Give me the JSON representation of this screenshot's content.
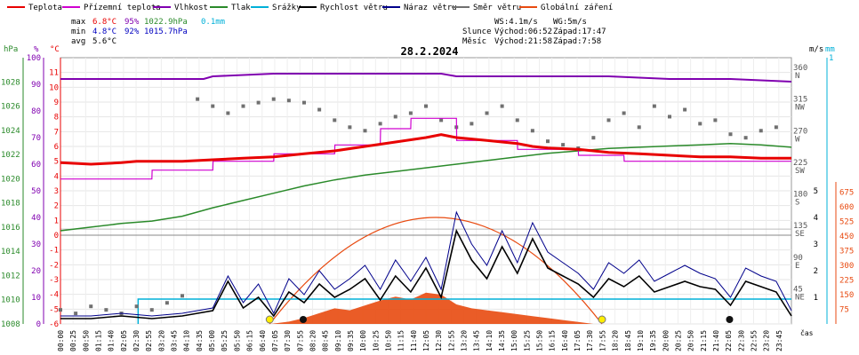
{
  "colors": {
    "temperature": "#e80000",
    "feels_like": "#d000d0",
    "humidity": "#8000b0",
    "pressure": "#2a8a2a",
    "precipitation": "#00b0d8",
    "wind_speed": "#000000",
    "gust": "#00008b",
    "wind_dir": "#707070",
    "solar": "#e84a10",
    "hpa_axis": "#2a8a2a",
    "pct_axis": "#8000b0",
    "temp_axis": "#e80000",
    "ms_axis": "#000000",
    "mm_axis": "#00b0d8",
    "wm2_axis": "#e84a10"
  },
  "legend": [
    {
      "label": "Teplota",
      "color_key": "temperature"
    },
    {
      "label": "Přízemní teplota",
      "color_key": "feels_like"
    },
    {
      "label": "Vlhkost",
      "color_key": "humidity"
    },
    {
      "label": "Tlak",
      "color_key": "pressure"
    },
    {
      "label": "Srážky",
      "color_key": "precipitation"
    },
    {
      "label": "Rychlost větru",
      "color_key": "wind_speed"
    },
    {
      "label": "Náraz větru",
      "color_key": "gust"
    },
    {
      "label": "Směr větru",
      "color_key": "wind_dir"
    },
    {
      "label": "Globální záření",
      "color_key": "solar"
    }
  ],
  "stats": {
    "max": {
      "label": "max",
      "temp": "6.8°C",
      "hum": "95%",
      "press": "1022.9hPa",
      "precip": "0.1mm"
    },
    "min": {
      "label": "min",
      "temp": "4.8°C",
      "hum": "92%",
      "press": "1015.7hPa"
    },
    "avg": {
      "label": "avg",
      "temp": "5.6°C"
    },
    "wind": {
      "ws": "WS:4.1m/s",
      "wg": "WG:5m/s"
    },
    "sun": {
      "label": "Slunce",
      "rise": "Východ:06:52",
      "set": "Západ:17:47"
    },
    "moon": {
      "label": "Měsíc",
      "rise": "Východ:21:58",
      "set": "Západ:7:58"
    }
  },
  "chart_data": {
    "type": "line",
    "title": "28.2.2024",
    "x_label": "čas",
    "x_ticks": [
      "00:00",
      "00:25",
      "00:50",
      "01:15",
      "01:40",
      "02:05",
      "02:30",
      "02:55",
      "03:20",
      "03:45",
      "04:10",
      "04:35",
      "05:00",
      "05:25",
      "05:50",
      "06:15",
      "06:40",
      "07:05",
      "07:30",
      "07:55",
      "08:20",
      "08:45",
      "09:10",
      "09:35",
      "10:00",
      "10:25",
      "10:50",
      "11:15",
      "11:40",
      "12:05",
      "12:30",
      "12:55",
      "13:20",
      "13:45",
      "14:10",
      "14:35",
      "15:00",
      "15:25",
      "15:50",
      "16:15",
      "16:40",
      "17:05",
      "17:30",
      "17:55",
      "18:20",
      "18:45",
      "19:10",
      "19:35",
      "20:00",
      "20:25",
      "20:50",
      "21:15",
      "21:40",
      "22:05",
      "22:30",
      "22:55",
      "23:20",
      "23:45"
    ],
    "axes": {
      "hpa": {
        "unit": "hPa",
        "range": [
          1008,
          1030
        ],
        "ticks": [
          "1008",
          "1010",
          "1012",
          "1014",
          "1016",
          "1018",
          "1020",
          "1022",
          "1024",
          "1026",
          "1028"
        ]
      },
      "pct": {
        "unit": "%",
        "range": [
          0,
          100
        ],
        "ticks": [
          "0",
          "10",
          "20",
          "30",
          "40",
          "50",
          "60",
          "70",
          "80",
          "90",
          "100"
        ]
      },
      "temp": {
        "unit": "°C",
        "range": [
          -6,
          12
        ],
        "ticks": [
          "-6",
          "-5",
          "-4",
          "-3",
          "-2",
          "-1",
          "0",
          "1",
          "2",
          "3",
          "4",
          "5",
          "6",
          "7",
          "8",
          "9",
          "10",
          "11"
        ]
      },
      "dir": {
        "ticks": [
          "45 NE",
          "90 E",
          "135 SE",
          "180 S",
          "225 SW",
          "270 W",
          "315 NW",
          "360 N"
        ]
      },
      "ms": {
        "unit": "m/s",
        "range": [
          0,
          10
        ],
        "ticks": [
          "1",
          "2",
          "3",
          "4",
          "5"
        ]
      },
      "mm": {
        "unit": "mm",
        "ticks": [
          "1"
        ]
      },
      "wm2": {
        "range": [
          0,
          750
        ],
        "ticks": [
          "75",
          "150",
          "225",
          "300",
          "375",
          "450",
          "525",
          "600",
          "675"
        ]
      }
    },
    "series": [
      {
        "name": "Teplota",
        "unit": "°C",
        "x": [
          0,
          1,
          2,
          2.5,
          3,
          4,
          5,
          6,
          7,
          8,
          9,
          10,
          11,
          12,
          12.5,
          13,
          14,
          15,
          15.5,
          16,
          17,
          18,
          19,
          20,
          21,
          22,
          23,
          24
        ],
        "values": [
          4.9,
          4.8,
          4.9,
          5.0,
          5.0,
          5.0,
          5.1,
          5.2,
          5.3,
          5.5,
          5.7,
          6.0,
          6.3,
          6.6,
          6.8,
          6.6,
          6.4,
          6.2,
          6.0,
          5.9,
          5.8,
          5.6,
          5.5,
          5.4,
          5.3,
          5.3,
          5.2,
          5.2
        ]
      },
      {
        "name": "Přízemní teplota",
        "unit": "°C",
        "x": [
          0,
          3,
          3.01,
          5,
          5.01,
          7,
          7.01,
          9,
          9.01,
          10.5,
          10.51,
          11.5,
          11.51,
          13,
          13.01,
          15,
          15.01,
          17,
          17.01,
          18.5,
          18.51,
          24
        ],
        "values": [
          3.8,
          3.8,
          4.4,
          4.4,
          5.0,
          5.0,
          5.5,
          5.5,
          6.1,
          6.1,
          7.2,
          7.2,
          7.9,
          7.9,
          6.4,
          6.4,
          5.8,
          5.8,
          5.4,
          5.4,
          5.0,
          5.0
        ]
      },
      {
        "name": "Vlhkost",
        "unit": "%",
        "x": [
          0,
          4.7,
          5.0,
          7,
          10,
          12.5,
          13,
          14,
          16,
          18,
          20,
          21,
          22,
          24
        ],
        "values": [
          92,
          92,
          93,
          94,
          94,
          94,
          93,
          93,
          93,
          93,
          92,
          92,
          92,
          91
        ]
      },
      {
        "name": "Tlak",
        "unit": "hPa",
        "x": [
          0,
          1,
          2,
          3,
          4,
          5,
          6,
          7,
          8,
          9,
          10,
          11,
          12,
          13,
          14,
          15,
          16,
          17,
          18,
          19,
          20,
          21,
          22,
          23,
          24
        ],
        "values": [
          1015.7,
          1016.0,
          1016.3,
          1016.5,
          1016.9,
          1017.6,
          1018.2,
          1018.8,
          1019.4,
          1019.9,
          1020.3,
          1020.6,
          1020.9,
          1021.2,
          1021.5,
          1021.8,
          1022.1,
          1022.3,
          1022.5,
          1022.6,
          1022.7,
          1022.8,
          1022.9,
          1022.8,
          1022.6
        ]
      },
      {
        "name": "Globální záření",
        "unit": "W/m²",
        "x": [
          6.9,
          7.5,
          8,
          8.5,
          9,
          9.5,
          10,
          10.5,
          11,
          11.5,
          12,
          12.5,
          13,
          13.5,
          14,
          14.5,
          15,
          15.5,
          16,
          16.5,
          17,
          17.5
        ],
        "values": [
          0,
          12,
          30,
          55,
          80,
          70,
          95,
          120,
          140,
          125,
          160,
          150,
          100,
          80,
          70,
          60,
          50,
          40,
          30,
          20,
          10,
          0
        ]
      },
      {
        "name": "Rychlost větru",
        "unit": "m/s",
        "x": [
          0,
          1,
          2,
          3,
          4,
          5,
          5.5,
          6,
          6.5,
          7,
          7.5,
          8,
          8.5,
          9,
          9.5,
          10,
          10.5,
          11,
          11.5,
          12,
          12.5,
          13,
          13.5,
          14,
          14.5,
          15,
          15.5,
          16,
          16.5,
          17,
          17.5,
          18,
          18.5,
          19,
          19.5,
          20,
          20.5,
          21,
          21.5,
          22,
          22.5,
          23,
          23.5,
          24
        ],
        "values": [
          0.4,
          0.4,
          0.6,
          0.4,
          0.6,
          1.0,
          3.2,
          1.2,
          2.0,
          0.6,
          2.4,
          1.6,
          3.0,
          2.0,
          2.6,
          3.4,
          1.8,
          3.6,
          2.4,
          4.2,
          2.0,
          7.0,
          4.8,
          3.4,
          5.8,
          3.8,
          6.4,
          4.2,
          3.6,
          3.0,
          2.0,
          3.4,
          2.8,
          3.6,
          2.4,
          2.8,
          3.2,
          2.8,
          2.6,
          1.4,
          3.2,
          2.8,
          2.4,
          0.6
        ]
      },
      {
        "name": "Náraz větru",
        "unit": "m/s",
        "x": [
          0,
          1,
          2,
          3,
          4,
          5,
          5.5,
          6,
          6.5,
          7,
          7.5,
          8,
          8.5,
          9,
          9.5,
          10,
          10.5,
          11,
          11.5,
          12,
          12.5,
          13,
          13.5,
          14,
          14.5,
          15,
          15.5,
          16,
          16.5,
          17,
          17.5,
          18,
          18.5,
          19,
          19.5,
          20,
          20.5,
          21,
          21.5,
          22,
          22.5,
          23,
          23.5,
          24
        ],
        "values": [
          0.6,
          0.6,
          0.8,
          0.6,
          0.8,
          1.2,
          3.6,
          1.6,
          3.0,
          0.8,
          3.4,
          2.2,
          4.0,
          2.6,
          3.4,
          4.4,
          2.6,
          4.8,
          3.2,
          5.0,
          2.6,
          8.4,
          6.0,
          4.4,
          7.0,
          4.6,
          7.6,
          5.4,
          4.6,
          3.8,
          2.6,
          4.6,
          3.8,
          4.8,
          3.2,
          3.8,
          4.4,
          3.8,
          3.4,
          2.0,
          4.2,
          3.6,
          3.2,
          1.0
        ]
      },
      {
        "name": "Směr větru",
        "unit": "°",
        "x": [
          0,
          0.5,
          1,
          1.5,
          2,
          2.5,
          3,
          3.5,
          4,
          4.5,
          5,
          5.5,
          6,
          6.5,
          7,
          7.5,
          8,
          8.5,
          9,
          9.5,
          10,
          10.5,
          11,
          11.5,
          12,
          12.5,
          13,
          13.5,
          14,
          14.5,
          15,
          15.5,
          16,
          16.5,
          17,
          17.5,
          18,
          18.5,
          19,
          19.5,
          20,
          20.5,
          21,
          21.5,
          22,
          22.5,
          23,
          23.5
        ],
        "values": [
          20,
          15,
          25,
          20,
          15,
          25,
          20,
          30,
          40,
          320,
          310,
          300,
          310,
          315,
          320,
          318,
          315,
          305,
          290,
          280,
          275,
          285,
          295,
          300,
          310,
          290,
          280,
          285,
          300,
          310,
          290,
          275,
          260,
          255,
          250,
          265,
          290,
          300,
          280,
          310,
          295,
          305,
          285,
          290,
          270,
          265,
          275,
          280
        ]
      }
    ],
    "precipitation_line": {
      "start_x": 2.55,
      "value_mm": 0.1
    },
    "markers": {
      "sunrise_x": 6.87,
      "sunset_x": 17.78,
      "moonrise_x": 21.97,
      "moonset_x": 7.97
    },
    "grid": true
  }
}
